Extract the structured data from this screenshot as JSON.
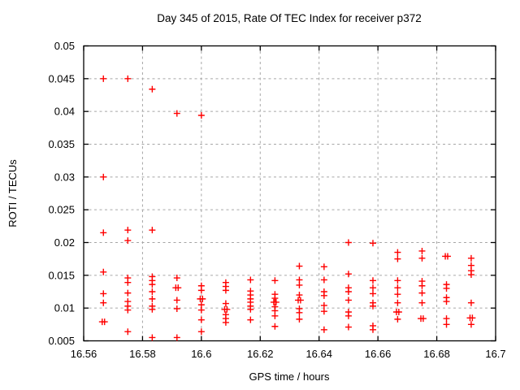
{
  "chart_data": {
    "type": "scatter",
    "title": "Day 345 of 2015, Rate Of TEC Index for receiver p372",
    "xlabel": "GPS time / hours",
    "ylabel": "ROTI / TECUs",
    "xlim": [
      16.56,
      16.7
    ],
    "ylim": [
      0.005,
      0.05
    ],
    "grid": true,
    "legend": "none",
    "marker": {
      "shape": "plus",
      "color": "#ff0000"
    },
    "axis_color": "#000000",
    "grid_color": "#a6a6a6",
    "background_color": "#ffffff",
    "xticks": {
      "values": [
        16.56,
        16.58,
        16.6,
        16.62,
        16.64,
        16.66,
        16.68,
        16.7
      ],
      "labels": [
        "16.56",
        "16.58",
        "16.6",
        "16.62",
        "16.64",
        "16.66",
        "16.68",
        "16.7"
      ]
    },
    "yticks": {
      "values": [
        0.005,
        0.01,
        0.015,
        0.02,
        0.025,
        0.03,
        0.035,
        0.04,
        0.045,
        0.05
      ],
      "labels": [
        "0.005",
        "0.01",
        "0.015",
        "0.02",
        "0.025",
        "0.03",
        "0.035",
        "0.04",
        "0.045",
        "0.05"
      ]
    },
    "points": [
      [
        16.5667,
        0.045
      ],
      [
        16.5667,
        0.03
      ],
      [
        16.5667,
        0.0215
      ],
      [
        16.5667,
        0.0155
      ],
      [
        16.5667,
        0.0122
      ],
      [
        16.5667,
        0.0108
      ],
      [
        16.5663,
        0.0079
      ],
      [
        16.5671,
        0.0079
      ],
      [
        16.575,
        0.045
      ],
      [
        16.575,
        0.0219
      ],
      [
        16.575,
        0.0203
      ],
      [
        16.575,
        0.0146
      ],
      [
        16.575,
        0.0139
      ],
      [
        16.575,
        0.0123
      ],
      [
        16.575,
        0.011
      ],
      [
        16.575,
        0.0103
      ],
      [
        16.575,
        0.0097
      ],
      [
        16.575,
        0.0064
      ],
      [
        16.5833,
        0.0434
      ],
      [
        16.5833,
        0.0219
      ],
      [
        16.5833,
        0.0148
      ],
      [
        16.5833,
        0.0142
      ],
      [
        16.5833,
        0.0136
      ],
      [
        16.5833,
        0.0125
      ],
      [
        16.5833,
        0.0114
      ],
      [
        16.5833,
        0.0103
      ],
      [
        16.5833,
        0.0098
      ],
      [
        16.5833,
        0.0055
      ],
      [
        16.5917,
        0.0397
      ],
      [
        16.5917,
        0.0146
      ],
      [
        16.5913,
        0.0131
      ],
      [
        16.5921,
        0.0131
      ],
      [
        16.5917,
        0.0112
      ],
      [
        16.5917,
        0.0099
      ],
      [
        16.5917,
        0.0055
      ],
      [
        16.6,
        0.0394
      ],
      [
        16.6,
        0.0134
      ],
      [
        16.6,
        0.0127
      ],
      [
        16.5996,
        0.0114
      ],
      [
        16.6004,
        0.0114
      ],
      [
        16.6,
        0.0105
      ],
      [
        16.6,
        0.0097
      ],
      [
        16.6,
        0.0082
      ],
      [
        16.6,
        0.0064
      ],
      [
        16.6083,
        0.0139
      ],
      [
        16.6083,
        0.0133
      ],
      [
        16.6083,
        0.0127
      ],
      [
        16.6083,
        0.0107
      ],
      [
        16.6079,
        0.0098
      ],
      [
        16.6087,
        0.0098
      ],
      [
        16.6083,
        0.009
      ],
      [
        16.6083,
        0.0084
      ],
      [
        16.6083,
        0.0078
      ],
      [
        16.6167,
        0.0143
      ],
      [
        16.6167,
        0.0126
      ],
      [
        16.6167,
        0.012
      ],
      [
        16.6167,
        0.0114
      ],
      [
        16.6167,
        0.0109
      ],
      [
        16.6167,
        0.0103
      ],
      [
        16.6167,
        0.0098
      ],
      [
        16.6167,
        0.0082
      ],
      [
        16.625,
        0.0142
      ],
      [
        16.625,
        0.0121
      ],
      [
        16.625,
        0.0115
      ],
      [
        16.6246,
        0.0109
      ],
      [
        16.6254,
        0.0109
      ],
      [
        16.625,
        0.0102
      ],
      [
        16.625,
        0.0096
      ],
      [
        16.625,
        0.0088
      ],
      [
        16.625,
        0.0072
      ],
      [
        16.6333,
        0.0164
      ],
      [
        16.6333,
        0.0143
      ],
      [
        16.6333,
        0.0135
      ],
      [
        16.6333,
        0.012
      ],
      [
        16.6329,
        0.0112
      ],
      [
        16.6337,
        0.0112
      ],
      [
        16.6333,
        0.0099
      ],
      [
        16.6333,
        0.0093
      ],
      [
        16.6333,
        0.0083
      ],
      [
        16.6417,
        0.0163
      ],
      [
        16.6417,
        0.0143
      ],
      [
        16.6417,
        0.0125
      ],
      [
        16.6417,
        0.0119
      ],
      [
        16.6417,
        0.0104
      ],
      [
        16.6417,
        0.0095
      ],
      [
        16.6417,
        0.0067
      ],
      [
        16.65,
        0.02
      ],
      [
        16.65,
        0.0152
      ],
      [
        16.65,
        0.0131
      ],
      [
        16.65,
        0.0125
      ],
      [
        16.65,
        0.0112
      ],
      [
        16.65,
        0.0094
      ],
      [
        16.65,
        0.0088
      ],
      [
        16.65,
        0.0071
      ],
      [
        16.6583,
        0.0199
      ],
      [
        16.6583,
        0.0142
      ],
      [
        16.6583,
        0.0131
      ],
      [
        16.6583,
        0.0122
      ],
      [
        16.6583,
        0.0108
      ],
      [
        16.6583,
        0.0103
      ],
      [
        16.6583,
        0.0073
      ],
      [
        16.6583,
        0.0067
      ],
      [
        16.6667,
        0.0185
      ],
      [
        16.6667,
        0.0175
      ],
      [
        16.6667,
        0.0142
      ],
      [
        16.6667,
        0.0131
      ],
      [
        16.6667,
        0.0121
      ],
      [
        16.6667,
        0.0108
      ],
      [
        16.6663,
        0.0094
      ],
      [
        16.6671,
        0.0094
      ],
      [
        16.6667,
        0.0083
      ],
      [
        16.675,
        0.0187
      ],
      [
        16.675,
        0.0176
      ],
      [
        16.675,
        0.0141
      ],
      [
        16.675,
        0.0134
      ],
      [
        16.675,
        0.0123
      ],
      [
        16.675,
        0.0108
      ],
      [
        16.6746,
        0.0084
      ],
      [
        16.6754,
        0.0084
      ],
      [
        16.6829,
        0.0179
      ],
      [
        16.6837,
        0.0179
      ],
      [
        16.6833,
        0.0136
      ],
      [
        16.6833,
        0.013
      ],
      [
        16.6833,
        0.0116
      ],
      [
        16.6833,
        0.011
      ],
      [
        16.6833,
        0.0084
      ],
      [
        16.6833,
        0.0075
      ],
      [
        16.6917,
        0.0176
      ],
      [
        16.6917,
        0.0165
      ],
      [
        16.6917,
        0.0157
      ],
      [
        16.6917,
        0.0151
      ],
      [
        16.6917,
        0.0108
      ],
      [
        16.6913,
        0.0085
      ],
      [
        16.6921,
        0.0085
      ],
      [
        16.6917,
        0.0075
      ]
    ]
  }
}
